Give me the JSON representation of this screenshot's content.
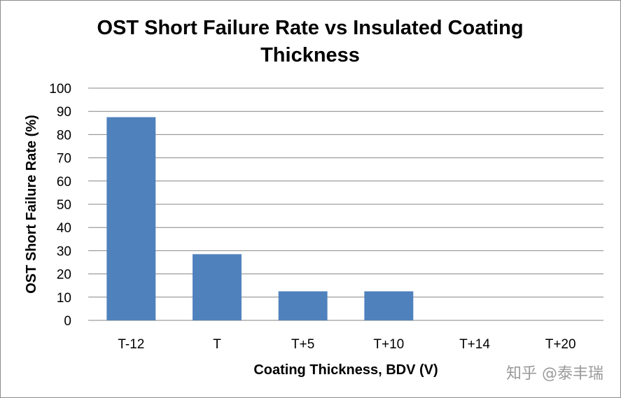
{
  "chart_data": {
    "type": "bar",
    "title_lines": [
      "OST Short Failure Rate vs Insulated Coating",
      "Thickness"
    ],
    "xlabel": "Coating Thickness, BDV (V)",
    "ylabel": "OST Short Failure Rate (%)",
    "categories": [
      "T-12",
      "T",
      "T+5",
      "T+10",
      "T+14",
      "T+20"
    ],
    "values": [
      87.5,
      28.5,
      12.5,
      12.5,
      0,
      0
    ],
    "ylim": [
      0,
      100
    ],
    "yticks": [
      "0",
      "10",
      "20",
      "30",
      "40",
      "50",
      "60",
      "70",
      "80",
      "90",
      "100"
    ],
    "grid": true,
    "legend": "none",
    "bar_color": "#4f81bd",
    "grid_color": "#868686"
  },
  "watermark": {
    "text": "知乎 @泰丰瑞"
  }
}
